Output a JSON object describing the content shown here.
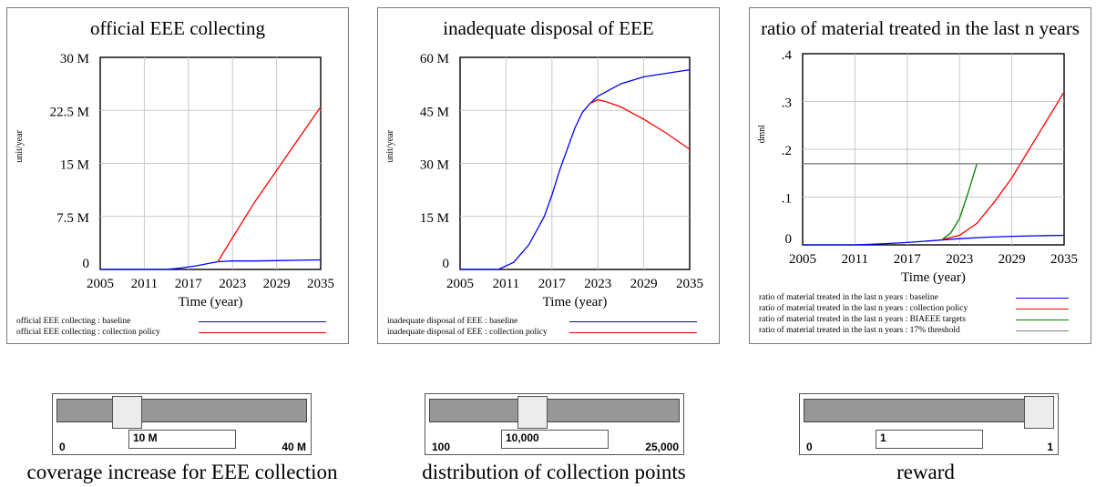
{
  "colors": {
    "baseline": "#0000ff",
    "policy": "#ff0000",
    "targets": "#008000",
    "threshold": "#808080"
  },
  "panels": [
    {
      "title": "official EEE collecting",
      "unit": "unit/year",
      "yticks": [
        "30 M",
        "22.5 M",
        "15 M",
        "7.5 M",
        "0"
      ],
      "xticks": [
        "2005",
        "2011",
        "2017",
        "2023",
        "2029",
        "2035"
      ],
      "xlabel": "Time (year)",
      "legend": [
        "official EEE collecting : baseline",
        "official EEE collecting : collection policy"
      ]
    },
    {
      "title": "inadequate disposal of EEE",
      "unit": "unit/year",
      "yticks": [
        "60 M",
        "45 M",
        "30 M",
        "15 M",
        "0"
      ],
      "xticks": [
        "2005",
        "2011",
        "2017",
        "2023",
        "2029",
        "2035"
      ],
      "xlabel": "Time (year)",
      "legend": [
        "inadequate disposal of EEE : baseline",
        "inadequate disposal of EEE : collection policy"
      ]
    },
    {
      "title": "ratio of material treated in the last n years",
      "unit": "dmnl",
      "yticks": [
        ".4",
        ".3",
        ".2",
        ".1",
        "0"
      ],
      "xticks": [
        "2005",
        "2011",
        "2017",
        "2023",
        "2029",
        "2035"
      ],
      "xlabel": "Time (year)",
      "legend": [
        "ratio of material treated in the last n years : baseline",
        "ratio of material treated in the last n years : collection policy",
        "ratio of material treated in the last n years : BIAEEE targets",
        "ratio of material treated in the last n years : 17% threshold"
      ]
    }
  ],
  "chart_data": [
    {
      "type": "line",
      "title": "official EEE collecting",
      "xlabel": "Time (year)",
      "ylabel": "unit/year",
      "xlim": [
        2005,
        2035
      ],
      "ylim": [
        0,
        30000000
      ],
      "series": [
        {
          "name": "official EEE collecting : baseline",
          "color": "#0000ff",
          "x": [
            2005,
            2014,
            2016,
            2018,
            2020,
            2021,
            2023,
            2026,
            2029,
            2032,
            2035
          ],
          "y": [
            0,
            0,
            200000,
            500000,
            900000,
            1100000,
            1200000,
            1200000,
            1250000,
            1300000,
            1350000
          ]
        },
        {
          "name": "official EEE collecting : collection policy",
          "color": "#ff0000",
          "x": [
            2021,
            2023,
            2026,
            2029,
            2032,
            2035
          ],
          "y": [
            1100000,
            4500000,
            9500000,
            14000000,
            18500000,
            23000000
          ]
        }
      ]
    },
    {
      "type": "line",
      "title": "inadequate disposal of EEE",
      "xlabel": "Time (year)",
      "ylabel": "unit/year",
      "xlim": [
        2005,
        2035
      ],
      "ylim": [
        0,
        60000000
      ],
      "series": [
        {
          "name": "inadequate disposal of EEE : baseline",
          "color": "#0000ff",
          "x": [
            2005,
            2010,
            2012,
            2014,
            2016,
            2017,
            2018,
            2019,
            2020,
            2021,
            2022,
            2023,
            2026,
            2029,
            2032,
            2035
          ],
          "y": [
            0,
            0,
            2000000,
            7000000,
            15000000,
            21000000,
            28000000,
            34000000,
            40000000,
            44500000,
            47000000,
            49000000,
            52500000,
            54500000,
            55500000,
            56500000
          ]
        },
        {
          "name": "inadequate disposal of EEE : collection policy",
          "color": "#ff0000",
          "x": [
            2022,
            2023,
            2024,
            2026,
            2029,
            2032,
            2035
          ],
          "y": [
            47000000,
            48000000,
            47500000,
            46000000,
            42500000,
            38500000,
            34000000
          ]
        }
      ]
    },
    {
      "type": "line",
      "title": "ratio of material treated in the last n years",
      "xlabel": "Time (year)",
      "ylabel": "dmnl",
      "xlim": [
        2005,
        2035
      ],
      "ylim": [
        0,
        0.4
      ],
      "series": [
        {
          "name": "ratio of material treated in the last n years : baseline",
          "color": "#0000ff",
          "x": [
            2005,
            2011,
            2014,
            2017,
            2020,
            2023,
            2026,
            2029,
            2032,
            2035
          ],
          "y": [
            0,
            0,
            0.002,
            0.005,
            0.009,
            0.013,
            0.016,
            0.018,
            0.019,
            0.02
          ]
        },
        {
          "name": "ratio of material treated in the last n years : collection policy",
          "color": "#ff0000",
          "x": [
            2021,
            2023,
            2025,
            2027,
            2029,
            2031,
            2033,
            2035
          ],
          "y": [
            0.011,
            0.02,
            0.045,
            0.09,
            0.14,
            0.2,
            0.26,
            0.32
          ]
        },
        {
          "name": "ratio of material treated in the last n years : BIAEEE targets",
          "color": "#008000",
          "x": [
            2021,
            2022,
            2023,
            2024,
            2025
          ],
          "y": [
            0.011,
            0.025,
            0.055,
            0.11,
            0.17
          ]
        },
        {
          "name": "ratio of material treated in the last n years : 17% threshold",
          "color": "#808080",
          "x": [
            2005,
            2035
          ],
          "y": [
            0.17,
            0.17
          ]
        }
      ]
    }
  ],
  "sliders": [
    {
      "label": "coverage increase for EEE collection",
      "min_label": "0",
      "max_label": "40 M",
      "value_text": "10 M",
      "fraction": 0.25
    },
    {
      "label": "distribution of collection points",
      "min_label": "100",
      "max_label": "25,000",
      "value_text": "10,000",
      "fraction": 0.4
    },
    {
      "label": "reward",
      "min_label": "0",
      "max_label": "1",
      "value_text": "1",
      "fraction": 1.0
    }
  ]
}
